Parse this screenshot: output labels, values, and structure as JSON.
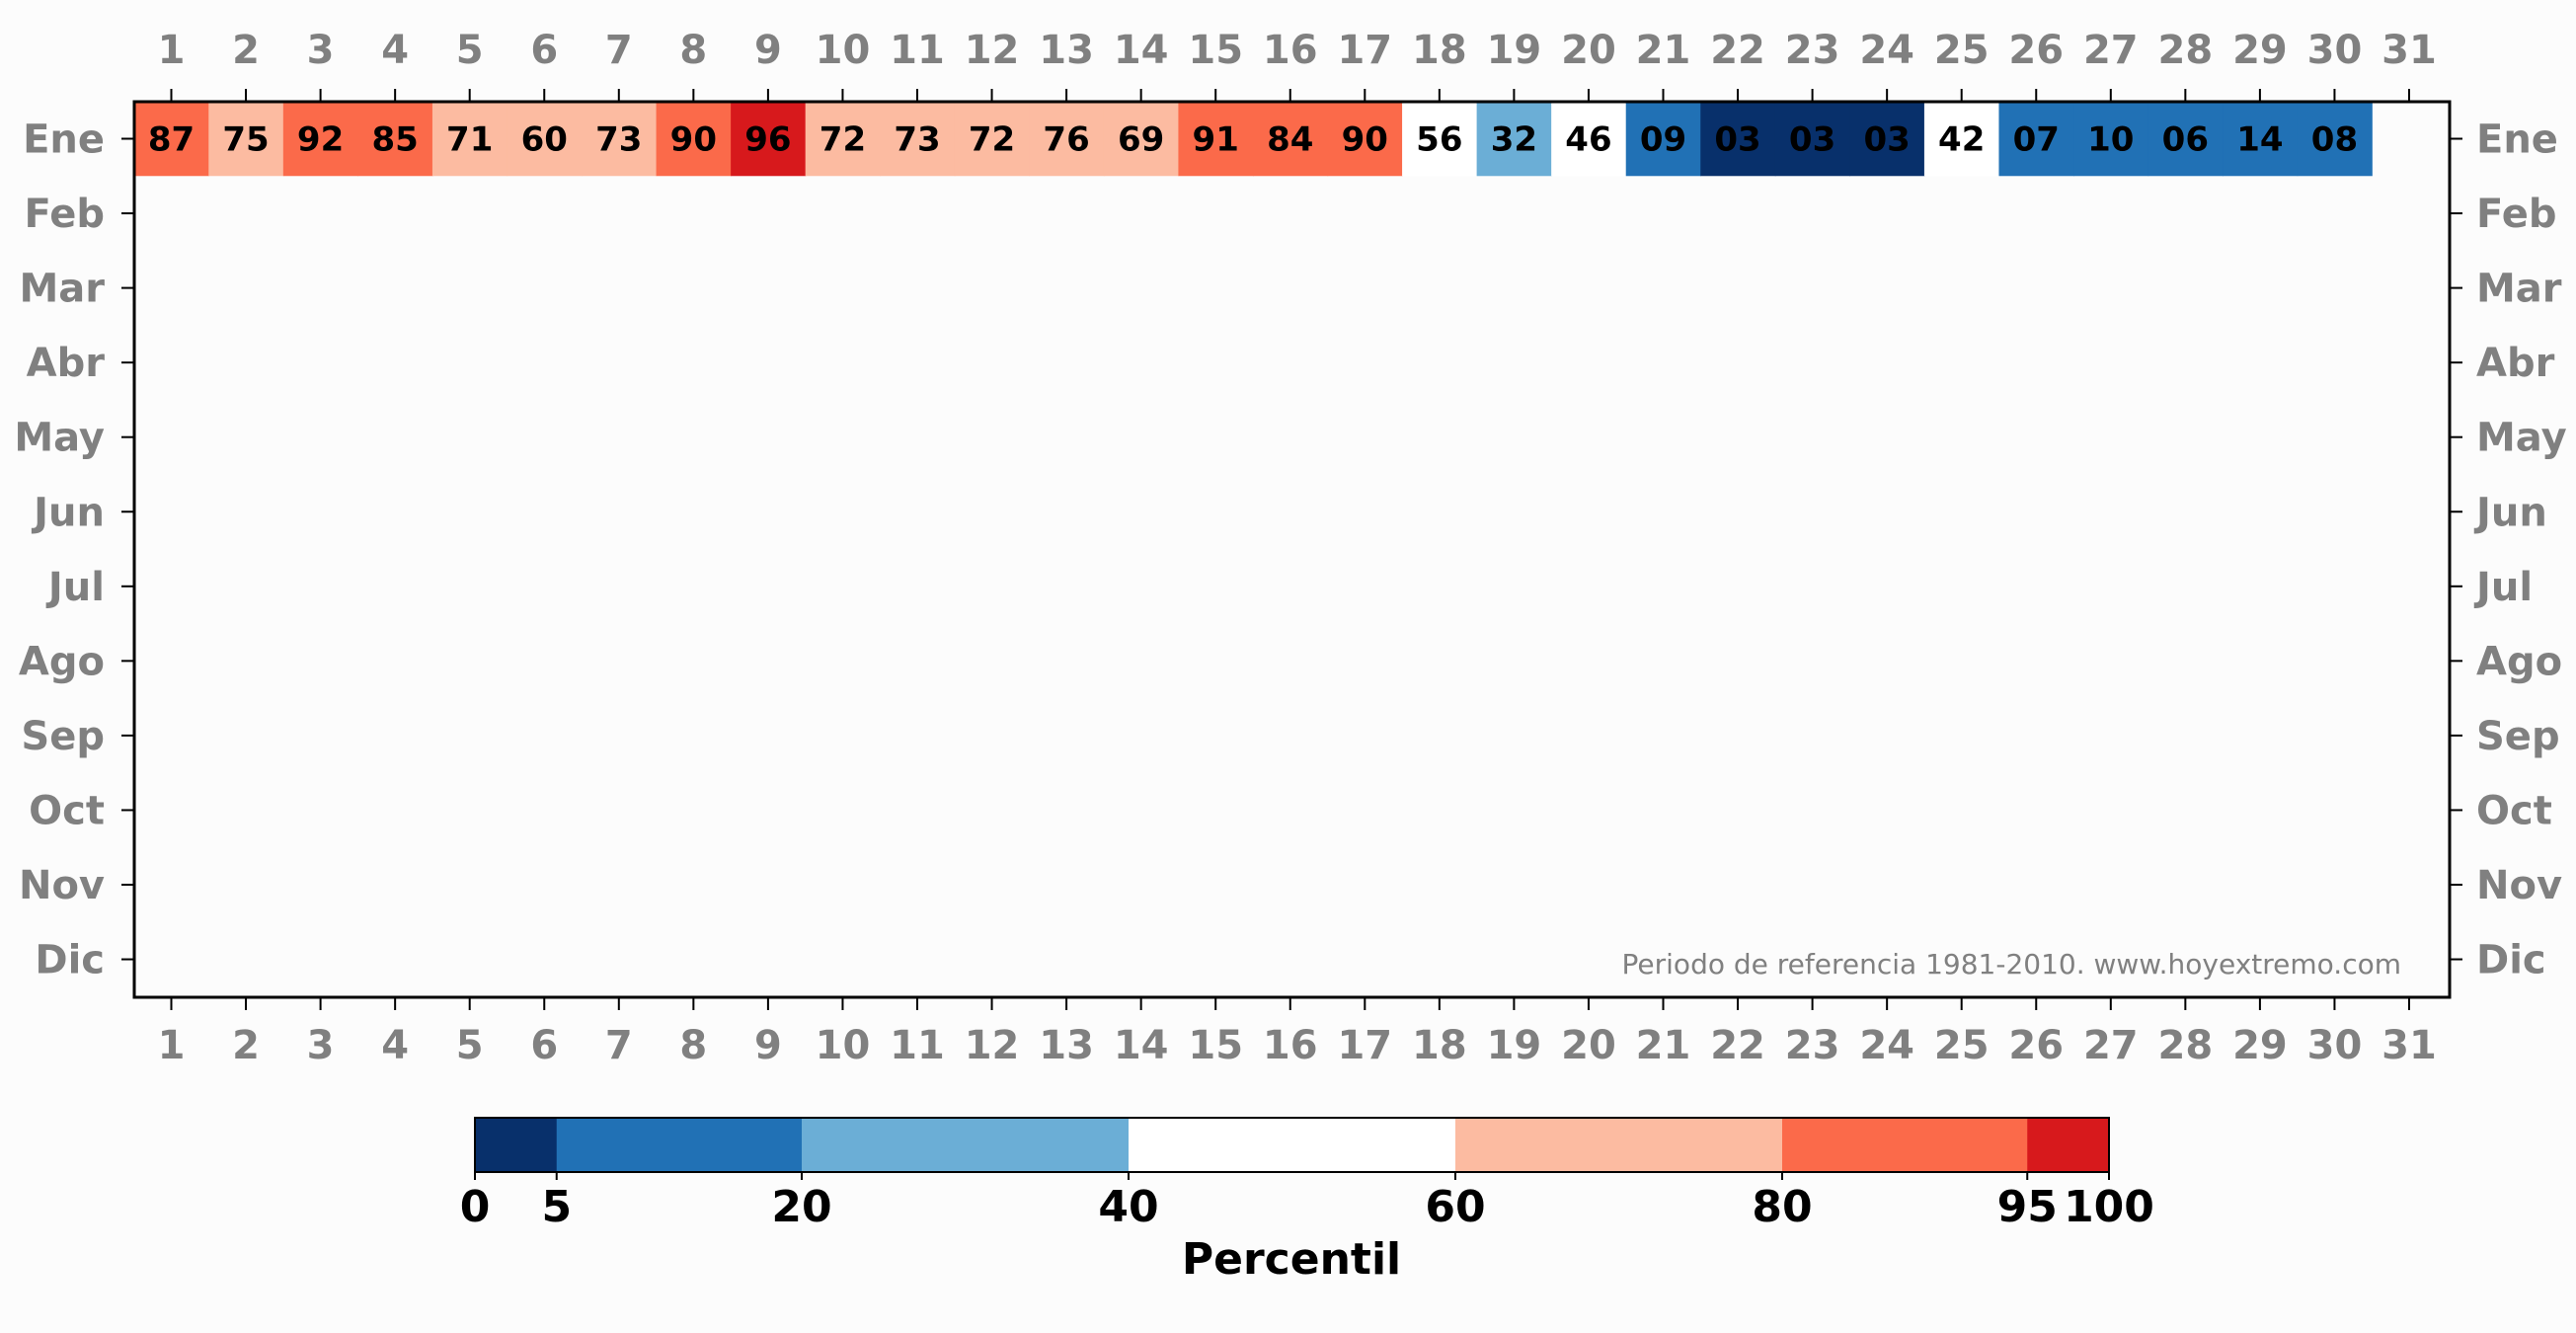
{
  "chart_data": {
    "type": "heatmap",
    "x_ticks": [
      "1",
      "2",
      "3",
      "4",
      "5",
      "6",
      "7",
      "8",
      "9",
      "10",
      "11",
      "12",
      "13",
      "14",
      "15",
      "16",
      "17",
      "18",
      "19",
      "20",
      "21",
      "22",
      "23",
      "24",
      "25",
      "26",
      "27",
      "28",
      "29",
      "30",
      "31"
    ],
    "y_ticks": [
      "Ene",
      "Feb",
      "Mar",
      "Abr",
      "May",
      "Jun",
      "Jul",
      "Ago",
      "Sep",
      "Oct",
      "Nov",
      "Dic"
    ],
    "rows": [
      {
        "month": "Ene",
        "labels": [
          "87",
          "75",
          "92",
          "85",
          "71",
          "60",
          "73",
          "90",
          "96",
          "72",
          "73",
          "72",
          "76",
          "69",
          "91",
          "84",
          "90",
          "56",
          "32",
          "46",
          "09",
          "03",
          "03",
          "03",
          "42",
          "07",
          "10",
          "06",
          "14",
          "08",
          null
        ]
      }
    ],
    "colorbar": {
      "label": "Percentil",
      "bounds": [
        0,
        5,
        20,
        40,
        60,
        80,
        95,
        100
      ],
      "tick_labels": [
        "0",
        "5",
        "20",
        "40",
        "60",
        "80",
        "95",
        "100"
      ],
      "colors": [
        "#08306b",
        "#2171b5",
        "#6baed6",
        "#ffffff",
        "#fcbba1",
        "#fb6a4a",
        "#d7191c"
      ]
    },
    "annotation": "Periodo de referencia 1981-2010. www.hoyextremo.com"
  }
}
